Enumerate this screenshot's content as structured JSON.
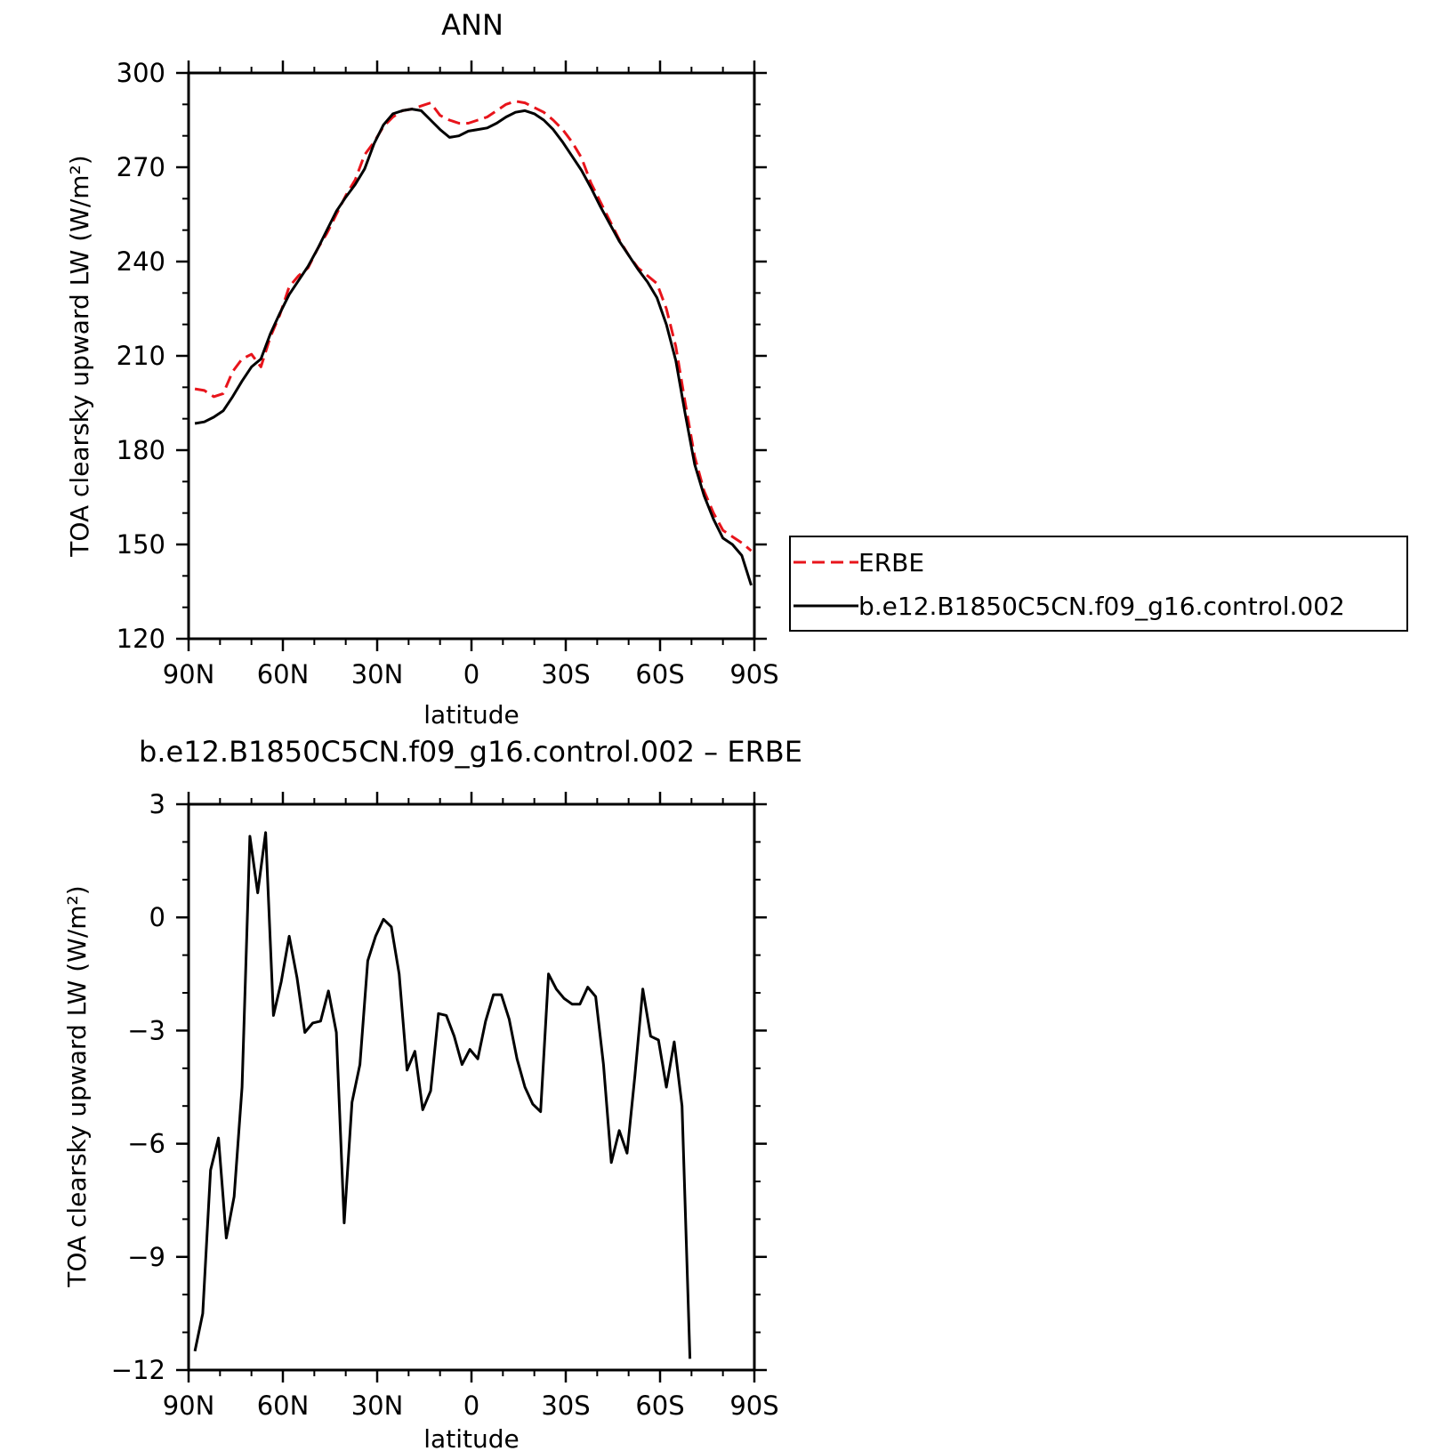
{
  "chart_data": [
    {
      "type": "line",
      "title": "ANN",
      "xlabel": "latitude",
      "ylabel": "TOA clearsky upward LW (W/m²)",
      "x_ticks": [
        "90N",
        "60N",
        "30N",
        "0",
        "30S",
        "60S",
        "90S"
      ],
      "x_tick_values": [
        -90,
        -60,
        -30,
        0,
        30,
        60,
        90
      ],
      "xlim": [
        -90,
        90
      ],
      "ylim": [
        120,
        300
      ],
      "y_ticks": [
        120,
        150,
        180,
        210,
        240,
        270,
        300
      ],
      "legend_position": "right",
      "legend": [
        "ERBE",
        "b.e12.B1850C5CN.f09_g16.control.002"
      ],
      "series": [
        {
          "name": "ERBE",
          "color": "#e8141b",
          "style": "dashed",
          "points": [
            [
              -88,
              199.5
            ],
            [
              -85,
              199
            ],
            [
              -82,
              197
            ],
            [
              -79,
              198
            ],
            [
              -76,
              205
            ],
            [
              -73,
              209
            ],
            [
              -70,
              210.5
            ],
            [
              -67,
              206.5
            ],
            [
              -64,
              216
            ],
            [
              -61,
              223
            ],
            [
              -58,
              232
            ],
            [
              -55,
              235.5
            ],
            [
              -52,
              238
            ],
            [
              -49,
              244
            ],
            [
              -46,
              249
            ],
            [
              -43,
              255
            ],
            [
              -40,
              261
            ],
            [
              -37,
              266
            ],
            [
              -34,
              274
            ],
            [
              -31,
              278
            ],
            [
              -28,
              283
            ],
            [
              -25,
              286
            ],
            [
              -22,
              288
            ],
            [
              -19,
              288.5
            ],
            [
              -16,
              289.5
            ],
            [
              -13,
              290.5
            ],
            [
              -10,
              286.5
            ],
            [
              -7,
              285
            ],
            [
              -4,
              284
            ],
            [
              -1,
              284
            ],
            [
              2,
              285
            ],
            [
              5,
              286
            ],
            [
              8,
              288
            ],
            [
              11,
              290
            ],
            [
              14,
              291
            ],
            [
              17,
              290.5
            ],
            [
              20,
              289
            ],
            [
              23,
              287.5
            ],
            [
              26,
              285
            ],
            [
              29,
              282
            ],
            [
              32,
              278
            ],
            [
              35,
              273
            ],
            [
              38,
              265
            ],
            [
              41,
              259
            ],
            [
              44,
              253
            ],
            [
              47,
              247
            ],
            [
              50,
              242
            ],
            [
              53,
              238
            ],
            [
              56,
              235.5
            ],
            [
              59,
              233
            ],
            [
              62,
              225
            ],
            [
              65,
              213
            ],
            [
              68,
              195
            ],
            [
              71,
              178
            ],
            [
              74,
              167
            ],
            [
              77,
              160
            ],
            [
              80,
              154.5
            ],
            [
              83,
              152.5
            ],
            [
              86,
              150.5
            ],
            [
              89,
              148
            ]
          ]
        },
        {
          "name": "b.e12.B1850C5CN.f09_g16.control.002",
          "color": "#000000",
          "style": "solid",
          "points": [
            [
              -88,
              188.5
            ],
            [
              -85,
              189
            ],
            [
              -82,
              190.5
            ],
            [
              -79,
              192.5
            ],
            [
              -76,
              197
            ],
            [
              -73,
              202
            ],
            [
              -70,
              206.5
            ],
            [
              -67,
              209
            ],
            [
              -64,
              217
            ],
            [
              -61,
              223.5
            ],
            [
              -58,
              229.5
            ],
            [
              -55,
              234
            ],
            [
              -52,
              238.5
            ],
            [
              -49,
              244
            ],
            [
              -46,
              250
            ],
            [
              -43,
              256
            ],
            [
              -40,
              260.5
            ],
            [
              -37,
              264.5
            ],
            [
              -34,
              269.5
            ],
            [
              -31,
              277.5
            ],
            [
              -28,
              283.5
            ],
            [
              -25,
              287
            ],
            [
              -22,
              288
            ],
            [
              -19,
              288.5
            ],
            [
              -16,
              288
            ],
            [
              -13,
              285
            ],
            [
              -10,
              282
            ],
            [
              -7,
              279.5
            ],
            [
              -4,
              280
            ],
            [
              -1,
              281.5
            ],
            [
              2,
              282
            ],
            [
              5,
              282.5
            ],
            [
              8,
              284
            ],
            [
              11,
              286
            ],
            [
              14,
              287.5
            ],
            [
              17,
              288
            ],
            [
              20,
              287
            ],
            [
              23,
              285
            ],
            [
              26,
              282
            ],
            [
              29,
              278
            ],
            [
              32,
              273.5
            ],
            [
              35,
              269
            ],
            [
              38,
              263.5
            ],
            [
              41,
              257.5
            ],
            [
              44,
              252
            ],
            [
              47,
              246.5
            ],
            [
              50,
              242
            ],
            [
              53,
              237.5
            ],
            [
              56,
              233.5
            ],
            [
              59,
              228.5
            ],
            [
              62,
              220
            ],
            [
              65,
              208.5
            ],
            [
              68,
              191.5
            ],
            [
              71,
              175.5
            ],
            [
              74,
              165.5
            ],
            [
              77,
              158
            ],
            [
              80,
              152
            ],
            [
              83,
              150
            ],
            [
              86,
              146.5
            ],
            [
              89,
              137
            ]
          ]
        }
      ]
    },
    {
      "type": "line",
      "title": "b.e12.B1850C5CN.f09_g16.control.002 – ERBE",
      "xlabel": "latitude",
      "ylabel": "TOA clearsky upward LW (W/m²)",
      "x_ticks": [
        "90N",
        "60N",
        "30N",
        "0",
        "30S",
        "60S",
        "90S"
      ],
      "x_tick_values": [
        -90,
        -60,
        -30,
        0,
        30,
        60,
        90
      ],
      "xlim": [
        -90,
        90
      ],
      "ylim": [
        -12,
        3
      ],
      "y_ticks": [
        -12,
        -9,
        -6,
        -3,
        0,
        3
      ],
      "y_tick_labels": [
        "−12",
        "−9",
        "−6",
        "−3",
        "0",
        "3"
      ],
      "series": [
        {
          "color": "#000000",
          "style": "solid",
          "points": [
            [
              -88,
              -11.5
            ],
            [
              -85.5,
              -10.5
            ],
            [
              -83,
              -6.7
            ],
            [
              -80.5,
              -5.85
            ],
            [
              -78,
              -8.5
            ],
            [
              -75.5,
              -7.4
            ],
            [
              -73,
              -4.5
            ],
            [
              -70.5,
              2.15
            ],
            [
              -68,
              0.65
            ],
            [
              -65.5,
              2.25
            ],
            [
              -63,
              -2.6
            ],
            [
              -60.5,
              -1.7
            ],
            [
              -58,
              -0.5
            ],
            [
              -55.5,
              -1.6
            ],
            [
              -53,
              -3.05
            ],
            [
              -50.5,
              -2.8
            ],
            [
              -48,
              -2.75
            ],
            [
              -45.5,
              -1.95
            ],
            [
              -43,
              -3.05
            ],
            [
              -40.5,
              -8.1
            ],
            [
              -38,
              -4.9
            ],
            [
              -35.5,
              -3.9
            ],
            [
              -33,
              -1.15
            ],
            [
              -30.5,
              -0.5
            ],
            [
              -28,
              -0.05
            ],
            [
              -25.5,
              -0.25
            ],
            [
              -23,
              -1.5
            ],
            [
              -20.5,
              -4.05
            ],
            [
              -18,
              -3.55
            ],
            [
              -15.5,
              -5.1
            ],
            [
              -13,
              -4.6
            ],
            [
              -10.5,
              -2.55
            ],
            [
              -8,
              -2.6
            ],
            [
              -5.5,
              -3.15
            ],
            [
              -3,
              -3.9
            ],
            [
              -0.5,
              -3.5
            ],
            [
              2,
              -3.75
            ],
            [
              4.5,
              -2.75
            ],
            [
              7,
              -2.05
            ],
            [
              9.5,
              -2.05
            ],
            [
              12,
              -2.7
            ],
            [
              14.5,
              -3.75
            ],
            [
              17,
              -4.5
            ],
            [
              19.5,
              -4.95
            ],
            [
              22,
              -5.15
            ],
            [
              24.5,
              -1.5
            ],
            [
              27,
              -1.9
            ],
            [
              29.5,
              -2.15
            ],
            [
              32,
              -2.3
            ],
            [
              34.5,
              -2.3
            ],
            [
              37,
              -1.85
            ],
            [
              39.5,
              -2.1
            ],
            [
              42,
              -3.9
            ],
            [
              44.5,
              -6.5
            ],
            [
              47,
              -5.65
            ],
            [
              49.5,
              -6.25
            ],
            [
              52,
              -4.2
            ],
            [
              54.5,
              -1.9
            ],
            [
              57,
              -3.15
            ],
            [
              59.5,
              -3.25
            ],
            [
              62,
              -4.5
            ],
            [
              64.5,
              -3.3
            ],
            [
              67,
              -5.0
            ],
            [
              69.5,
              -11.7
            ]
          ]
        }
      ]
    }
  ]
}
